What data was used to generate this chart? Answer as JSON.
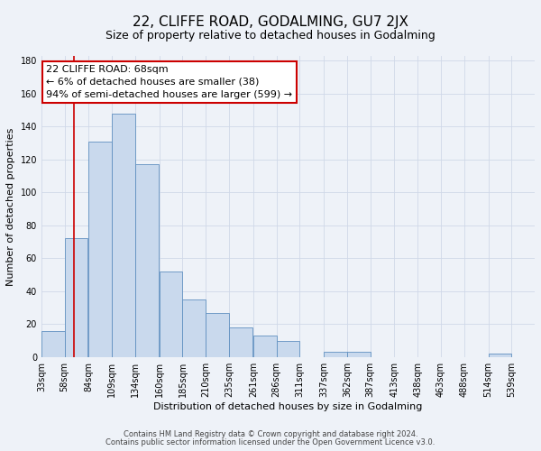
{
  "title": "22, CLIFFE ROAD, GODALMING, GU7 2JX",
  "subtitle": "Size of property relative to detached houses in Godalming",
  "xlabel": "Distribution of detached houses by size in Godalming",
  "ylabel": "Number of detached properties",
  "bar_left_edges": [
    33,
    58,
    84,
    109,
    134,
    160,
    185,
    210,
    235,
    261,
    286,
    311,
    337,
    362,
    387,
    413,
    438,
    463,
    488,
    514
  ],
  "bar_heights": [
    16,
    72,
    131,
    148,
    117,
    52,
    35,
    27,
    18,
    13,
    10,
    0,
    3,
    3,
    0,
    0,
    0,
    0,
    0,
    2
  ],
  "bin_width": 25,
  "bar_color": "#c9d9ed",
  "bar_edge_color": "#6090c0",
  "x_tick_labels": [
    "33sqm",
    "58sqm",
    "84sqm",
    "109sqm",
    "134sqm",
    "160sqm",
    "185sqm",
    "210sqm",
    "235sqm",
    "261sqm",
    "286sqm",
    "311sqm",
    "337sqm",
    "362sqm",
    "387sqm",
    "413sqm",
    "438sqm",
    "463sqm",
    "488sqm",
    "514sqm",
    "539sqm"
  ],
  "x_tick_positions": [
    33,
    58,
    84,
    109,
    134,
    160,
    185,
    210,
    235,
    261,
    286,
    311,
    337,
    362,
    387,
    413,
    438,
    463,
    488,
    514,
    539
  ],
  "xlim_left": 33,
  "xlim_right": 564,
  "ylim": [
    0,
    183
  ],
  "yticks": [
    0,
    20,
    40,
    60,
    80,
    100,
    120,
    140,
    160,
    180
  ],
  "property_line_x": 68,
  "property_line_color": "#cc0000",
  "annotation_text": "22 CLIFFE ROAD: 68sqm\n← 6% of detached houses are smaller (38)\n94% of semi-detached houses are larger (599) →",
  "annotation_box_facecolor": "#ffffff",
  "annotation_box_edgecolor": "#cc0000",
  "grid_color": "#d0d8e8",
  "bg_color": "#eef2f8",
  "footer_text1": "Contains HM Land Registry data © Crown copyright and database right 2024.",
  "footer_text2": "Contains public sector information licensed under the Open Government Licence v3.0.",
  "title_fontsize": 11,
  "subtitle_fontsize": 9,
  "axis_label_fontsize": 8,
  "tick_fontsize": 7,
  "annotation_fontsize": 8,
  "footer_fontsize": 6
}
